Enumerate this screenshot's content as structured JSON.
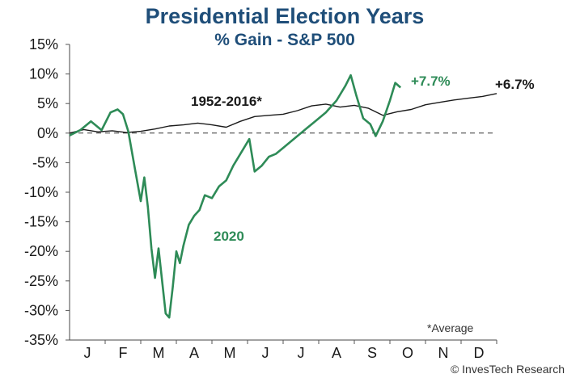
{
  "chart_data": {
    "type": "line",
    "title": "Presidential Election Years",
    "subtitle": "% Gain - S&P 500",
    "categories": [
      "J",
      "F",
      "M",
      "A",
      "M",
      "J",
      "J",
      "A",
      "S",
      "O",
      "N",
      "D"
    ],
    "ylim": [
      -35,
      15
    ],
    "yticks": [
      15,
      10,
      5,
      0,
      -5,
      -10,
      -15,
      -20,
      -25,
      -30,
      -35
    ],
    "ytick_labels": [
      "15%",
      "10%",
      "5%",
      "0%",
      "-5%",
      "-10%",
      "-15%",
      "-20%",
      "-25%",
      "-30%",
      "-35%"
    ],
    "xlim": [
      0,
      12
    ],
    "series": [
      {
        "name": "1952-2016*",
        "color": "#1a1a1a",
        "end_label": "+6.7%",
        "points": [
          [
            0,
            0
          ],
          [
            0.4,
            0.6
          ],
          [
            0.8,
            0.2
          ],
          [
            1.2,
            0.4
          ],
          [
            1.6,
            0.1
          ],
          [
            2.0,
            0.3
          ],
          [
            2.4,
            0.7
          ],
          [
            2.8,
            1.2
          ],
          [
            3.2,
            1.4
          ],
          [
            3.6,
            1.7
          ],
          [
            4.0,
            1.4
          ],
          [
            4.4,
            1.0
          ],
          [
            4.8,
            2.0
          ],
          [
            5.2,
            2.8
          ],
          [
            5.6,
            3.0
          ],
          [
            6.0,
            3.2
          ],
          [
            6.4,
            3.8
          ],
          [
            6.8,
            4.6
          ],
          [
            7.2,
            4.9
          ],
          [
            7.6,
            4.4
          ],
          [
            8.0,
            4.7
          ],
          [
            8.4,
            4.2
          ],
          [
            8.8,
            3.0
          ],
          [
            9.2,
            3.6
          ],
          [
            9.6,
            4.0
          ],
          [
            10.0,
            4.8
          ],
          [
            10.4,
            5.2
          ],
          [
            10.8,
            5.6
          ],
          [
            11.2,
            5.9
          ],
          [
            11.6,
            6.2
          ],
          [
            12.0,
            6.7
          ]
        ]
      },
      {
        "name": "2020",
        "color": "#2e8b57",
        "end_label": "+7.7%",
        "points": [
          [
            0,
            -0.4
          ],
          [
            0.3,
            0.5
          ],
          [
            0.6,
            2.0
          ],
          [
            0.9,
            0.5
          ],
          [
            1.15,
            3.5
          ],
          [
            1.35,
            4.0
          ],
          [
            1.5,
            3.2
          ],
          [
            1.65,
            0.3
          ],
          [
            1.85,
            -6.5
          ],
          [
            2.0,
            -11.5
          ],
          [
            2.1,
            -7.5
          ],
          [
            2.2,
            -12.5
          ],
          [
            2.3,
            -19.5
          ],
          [
            2.4,
            -24.5
          ],
          [
            2.5,
            -19.5
          ],
          [
            2.6,
            -25
          ],
          [
            2.7,
            -30.5
          ],
          [
            2.8,
            -31.2
          ],
          [
            2.9,
            -26
          ],
          [
            3.0,
            -20
          ],
          [
            3.1,
            -22
          ],
          [
            3.2,
            -19
          ],
          [
            3.35,
            -15.5
          ],
          [
            3.5,
            -14
          ],
          [
            3.65,
            -13
          ],
          [
            3.8,
            -10.5
          ],
          [
            4.0,
            -11
          ],
          [
            4.2,
            -9
          ],
          [
            4.4,
            -8
          ],
          [
            4.6,
            -5.5
          ],
          [
            4.8,
            -3.5
          ],
          [
            5.05,
            -1.0
          ],
          [
            5.2,
            -6.5
          ],
          [
            5.4,
            -5.5
          ],
          [
            5.6,
            -4.0
          ],
          [
            5.8,
            -3.5
          ],
          [
            6.0,
            -2.5
          ],
          [
            6.3,
            -1.0
          ],
          [
            6.6,
            0.5
          ],
          [
            6.9,
            2.0
          ],
          [
            7.2,
            3.5
          ],
          [
            7.5,
            5.5
          ],
          [
            7.75,
            8.0
          ],
          [
            7.9,
            9.8
          ],
          [
            8.05,
            6.5
          ],
          [
            8.25,
            2.5
          ],
          [
            8.45,
            1.5
          ],
          [
            8.6,
            -0.5
          ],
          [
            8.8,
            2.0
          ],
          [
            9.0,
            5.5
          ],
          [
            9.15,
            8.5
          ],
          [
            9.3,
            7.7
          ]
        ]
      }
    ],
    "annotations": {
      "series_label_avg": "1952-2016*",
      "series_label_2020": "2020",
      "end_avg": "+6.7%",
      "end_2020": "+7.7%",
      "footnote": "*Average",
      "credit": "© InvesTech Research"
    },
    "grid": false,
    "zero_line": "dashed"
  }
}
